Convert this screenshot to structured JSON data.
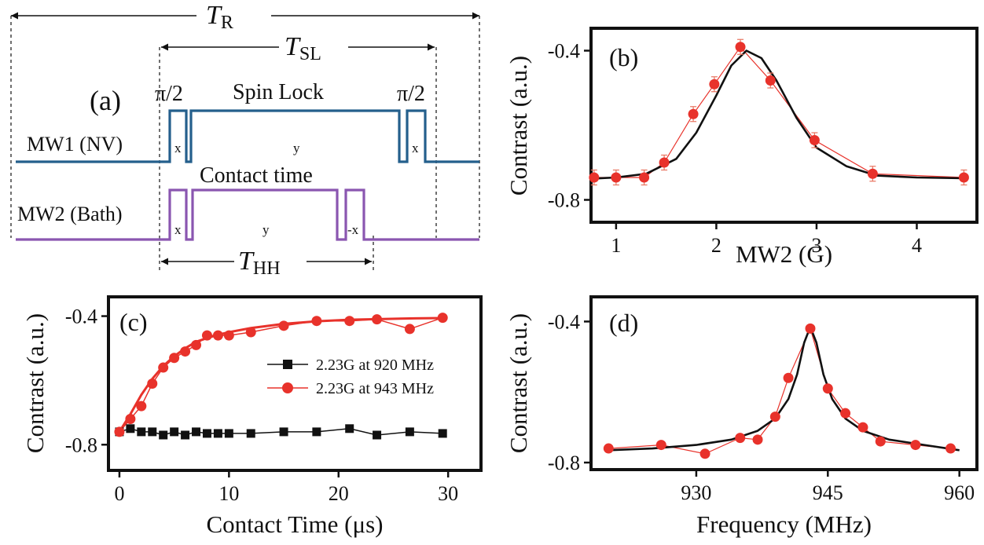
{
  "colors": {
    "nv_line": "#245f8c",
    "bath_line": "#8a56b0",
    "red": "#e8322b",
    "red_err": "#e8745f",
    "black": "#111111"
  },
  "sequence": {
    "panel_label": "(a)",
    "t_r": {
      "base": "T",
      "sub": "R"
    },
    "t_sl": {
      "base": "T",
      "sub": "SL"
    },
    "t_hh": {
      "base": "T",
      "sub": "HH"
    },
    "pi2_left": "π/2",
    "pi2_right": "π/2",
    "spin_lock": "Spin Lock",
    "contact_time": "Contact time",
    "mw1_label": "MW1 (NV)",
    "mw2_label": "MW2 (Bath)",
    "mw1_phases": [
      "x",
      "y",
      "x"
    ],
    "mw2_phases": [
      "x",
      "y",
      "-x"
    ]
  },
  "chart_data": [
    {
      "id": "b",
      "panel_label": "(b)",
      "type": "scatter",
      "xlabel": "MW2 (G)",
      "ylabel": "Contrast (a.u.)",
      "xlim": [
        0.75,
        4.6
      ],
      "ylim": [
        -0.86,
        -0.34
      ],
      "xticks": [
        1,
        2,
        3,
        4
      ],
      "yticks": [
        -0.8,
        -0.4
      ],
      "ytick_labels": [
        "-0.8",
        "-0.4"
      ],
      "series": [
        {
          "type": "scatter-line-errorbar",
          "x": [
            0.78,
            1.0,
            1.28,
            1.48,
            1.77,
            1.98,
            2.24,
            2.54,
            2.98,
            3.56,
            4.47
          ],
          "y": [
            -0.74,
            -0.74,
            -0.74,
            -0.7,
            -0.57,
            -0.49,
            -0.39,
            -0.48,
            -0.64,
            -0.73,
            -0.74
          ],
          "yerr": [
            0.02,
            0.02,
            0.02,
            0.02,
            0.02,
            0.02,
            0.02,
            0.02,
            0.02,
            0.02,
            0.02
          ]
        },
        {
          "type": "fit-line",
          "x": [
            0.78,
            1.0,
            1.3,
            1.6,
            1.8,
            2.0,
            2.15,
            2.3,
            2.45,
            2.6,
            2.8,
            3.0,
            3.3,
            3.6,
            4.0,
            4.47
          ],
          "y": [
            -0.743,
            -0.74,
            -0.73,
            -0.69,
            -0.62,
            -0.52,
            -0.44,
            -0.4,
            -0.42,
            -0.48,
            -0.58,
            -0.66,
            -0.71,
            -0.735,
            -0.74,
            -0.742
          ]
        }
      ]
    },
    {
      "id": "c",
      "panel_label": "(c)",
      "type": "line",
      "xlabel": "Contact Time (μs)",
      "ylabel": "Contrast (a.u.)",
      "xlim": [
        -1,
        33
      ],
      "ylim": [
        -0.88,
        -0.34
      ],
      "xticks": [
        0,
        10,
        20,
        30
      ],
      "yticks": [
        -0.8,
        -0.4
      ],
      "ytick_labels": [
        "-0.8",
        "-0.4"
      ],
      "series": [
        {
          "name": "2.23G at 920 MHz",
          "marker": "square",
          "x": [
            0,
            1,
            2,
            3,
            4,
            5,
            6,
            7,
            8,
            9,
            10,
            12,
            15,
            18,
            21,
            23.5,
            26.5,
            29.5
          ],
          "y": [
            -0.76,
            -0.75,
            -0.76,
            -0.76,
            -0.77,
            -0.76,
            -0.77,
            -0.76,
            -0.765,
            -0.765,
            -0.765,
            -0.765,
            -0.76,
            -0.76,
            -0.75,
            -0.77,
            -0.76,
            -0.765
          ]
        },
        {
          "name": "2.23G at 943 MHz",
          "marker": "circle",
          "x": [
            0,
            1,
            2,
            3,
            4,
            5,
            6,
            7,
            8,
            9,
            10,
            12,
            15,
            18,
            21,
            23.5,
            26.5,
            29.5
          ],
          "y": [
            -0.76,
            -0.72,
            -0.68,
            -0.61,
            -0.56,
            -0.53,
            -0.51,
            -0.49,
            -0.46,
            -0.46,
            -0.46,
            -0.45,
            -0.43,
            -0.415,
            -0.415,
            -0.41,
            -0.44,
            -0.405
          ]
        },
        {
          "type": "fit-line",
          "x": [
            0,
            1,
            2,
            3,
            4,
            5,
            6,
            7,
            8,
            9,
            10,
            12,
            15,
            18,
            21,
            24,
            27,
            29.5
          ],
          "y": [
            -0.76,
            -0.705,
            -0.645,
            -0.595,
            -0.555,
            -0.525,
            -0.5,
            -0.48,
            -0.468,
            -0.458,
            -0.45,
            -0.437,
            -0.424,
            -0.416,
            -0.411,
            -0.409,
            -0.407,
            -0.406
          ]
        }
      ],
      "legend_position": "center-right"
    },
    {
      "id": "d",
      "panel_label": "(d)",
      "type": "scatter",
      "xlabel": "Frequency (MHz)",
      "ylabel": "Contrast (a.u.)",
      "xlim": [
        918,
        962
      ],
      "ylim": [
        -0.82,
        -0.33
      ],
      "xticks": [
        930,
        945,
        960
      ],
      "yticks": [
        -0.8,
        -0.4
      ],
      "ytick_labels": [
        "-0.8",
        "-0.4"
      ],
      "series": [
        {
          "type": "scatter-line",
          "x": [
            920,
            926,
            931,
            935,
            937,
            939,
            940.5,
            943,
            945,
            947,
            949,
            951,
            955,
            959
          ],
          "y": [
            -0.76,
            -0.75,
            -0.775,
            -0.73,
            -0.735,
            -0.67,
            -0.56,
            -0.42,
            -0.59,
            -0.66,
            -0.7,
            -0.74,
            -0.75,
            -0.76
          ]
        },
        {
          "type": "fit-line",
          "x": [
            920,
            925,
            930,
            934,
            937,
            939,
            940.5,
            941.5,
            942.3,
            943,
            943.7,
            944.5,
            945.5,
            947,
            949,
            952,
            956,
            960
          ],
          "y": [
            -0.765,
            -0.76,
            -0.75,
            -0.735,
            -0.71,
            -0.675,
            -0.62,
            -0.55,
            -0.46,
            -0.415,
            -0.46,
            -0.55,
            -0.62,
            -0.675,
            -0.71,
            -0.735,
            -0.75,
            -0.765
          ]
        }
      ]
    }
  ]
}
